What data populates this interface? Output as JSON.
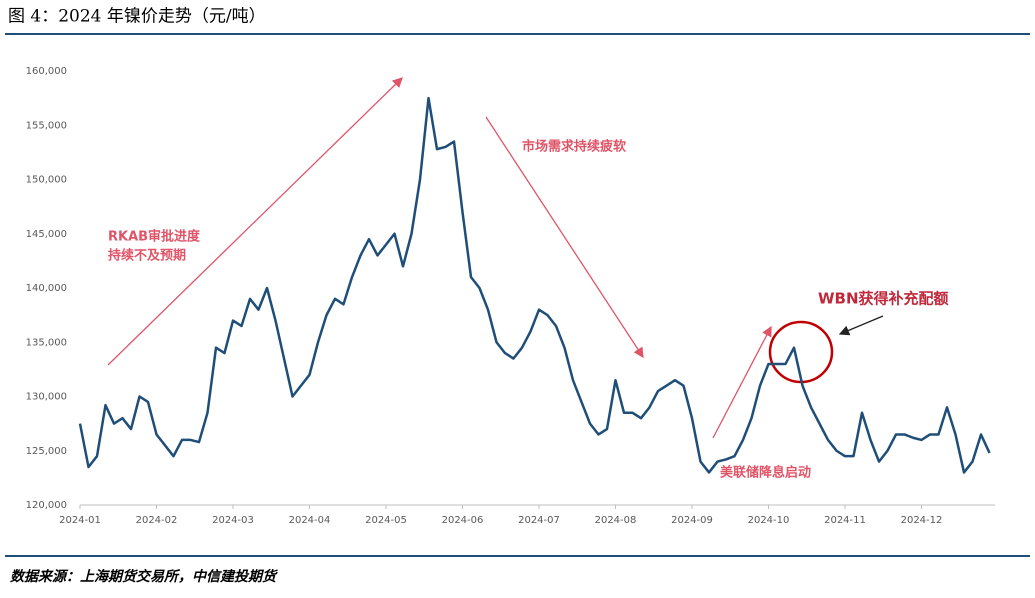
{
  "chart_data": {
    "type": "line",
    "title": "图 4：2024 年镍价走势（元/吨）",
    "source": "数据来源：上海期货交易所，中信建投期货",
    "annotations": [
      "RKAB审批进度",
      "持续不及预期",
      "市场需求持续疲软",
      "WBN获得补充配额",
      "美联储降息启动"
    ],
    "categories": [
      "2024-01",
      null,
      null,
      null,
      null,
      null,
      null,
      null,
      null,
      "2024-02",
      null,
      null,
      null,
      null,
      null,
      null,
      null,
      null,
      "2024-03",
      null,
      null,
      null,
      null,
      null,
      null,
      null,
      null,
      "2024-04",
      null,
      null,
      null,
      null,
      null,
      null,
      null,
      null,
      "2024-05",
      null,
      null,
      null,
      null,
      null,
      null,
      null,
      null,
      "2024-06",
      null,
      null,
      null,
      null,
      null,
      null,
      null,
      null,
      "2024-07",
      null,
      null,
      null,
      null,
      null,
      null,
      null,
      null,
      "2024-08",
      null,
      null,
      null,
      null,
      null,
      null,
      null,
      null,
      "2024-09",
      null,
      null,
      null,
      null,
      null,
      null,
      null,
      null,
      "2024-10",
      null,
      null,
      null,
      null,
      null,
      null,
      null,
      null,
      "2024-11",
      null,
      null,
      null,
      null,
      null,
      null,
      null,
      null,
      "2024-12",
      null,
      null,
      null,
      null,
      null,
      null,
      null,
      null
    ],
    "series": [
      {
        "color": "#1f4e79",
        "values": [
          127500,
          123500,
          124500,
          129200,
          127500,
          128000,
          127000,
          130000,
          129500,
          126500,
          125500,
          124500,
          126000,
          126000,
          125800,
          128500,
          134500,
          134000,
          137000,
          136500,
          139000,
          138000,
          140000,
          137000,
          133500,
          130000,
          131000,
          132000,
          135000,
          137500,
          139000,
          138500,
          141000,
          143000,
          144500,
          143000,
          144000,
          145000,
          142000,
          145000,
          150000,
          157500,
          152800,
          153000,
          153500,
          147000,
          141000,
          140000,
          138000,
          135000,
          134000,
          133500,
          134500,
          136000,
          138000,
          137500,
          136500,
          134500,
          131500,
          129500,
          127500,
          126500,
          127000,
          131500,
          128500,
          128500,
          128000,
          129000,
          130500,
          131000,
          131500,
          131000,
          128000,
          124000,
          123000,
          124000,
          124200,
          124500,
          126000,
          128000,
          131000,
          133000,
          133000,
          133000,
          134500,
          131000,
          129000,
          127500,
          126000,
          125000,
          124500,
          124500,
          128500,
          126000,
          124000,
          125000,
          126500,
          126500,
          126200,
          126000,
          126500,
          126500,
          129000,
          126500,
          123000,
          124000,
          126500,
          124800
        ]
      }
    ],
    "ylim": [
      120000,
      160000
    ],
    "yticks": [
      {
        "value": 120000,
        "label": "120,000"
      },
      {
        "value": 125000,
        "label": "125,000"
      },
      {
        "value": 130000,
        "label": "130,000"
      },
      {
        "value": 135000,
        "label": "135,000"
      },
      {
        "value": 140000,
        "label": "140,000"
      },
      {
        "value": 145000,
        "label": "145,000"
      },
      {
        "value": 150000,
        "label": "150,000"
      },
      {
        "value": 155000,
        "label": "155,000"
      },
      {
        "value": 160000,
        "label": "160,000"
      }
    ],
    "grid": false
  }
}
